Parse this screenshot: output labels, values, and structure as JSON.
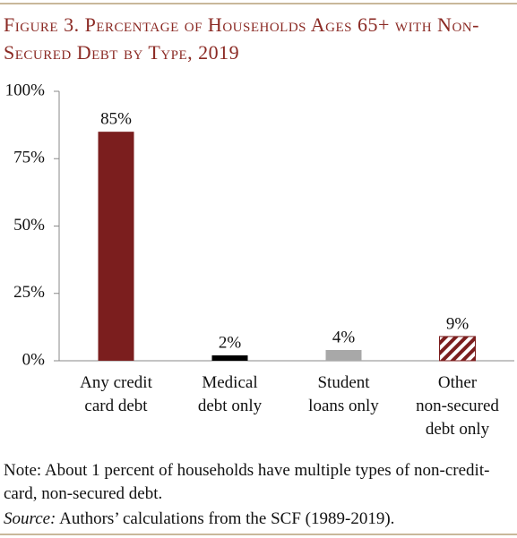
{
  "chart_data": {
    "type": "bar",
    "title": "Figure 3. Percentage of Households Ages 65+ with Non-Secured Debt by Type, 2019",
    "categories": [
      [
        "Any credit",
        "card debt"
      ],
      [
        "Medical",
        "debt only"
      ],
      [
        "Student",
        "loans only"
      ],
      [
        "Other",
        "non-secured",
        "debt only"
      ]
    ],
    "values": [
      85,
      2,
      4,
      9
    ],
    "value_labels": [
      "85%",
      "2%",
      "4%",
      "9%"
    ],
    "colors": [
      "#7b1e1e",
      "#000000",
      "#a8a8a8",
      "#7b1e1e"
    ],
    "hatched": [
      false,
      false,
      false,
      true
    ],
    "ylim": [
      0,
      100
    ],
    "yticks": [
      {
        "value": 0,
        "label": "0%"
      },
      {
        "value": 25,
        "label": "25%"
      },
      {
        "value": 50,
        "label": "50%"
      },
      {
        "value": 75,
        "label": "75%"
      },
      {
        "value": 100,
        "label": "100%"
      }
    ],
    "grid": false,
    "note": "Note: About 1 percent of households have multiple types of non-credit-card, non-secured debt.",
    "source": {
      "label": "Source:",
      "text": " Authors’ calculations from the SCF (1989-2019)."
    }
  }
}
